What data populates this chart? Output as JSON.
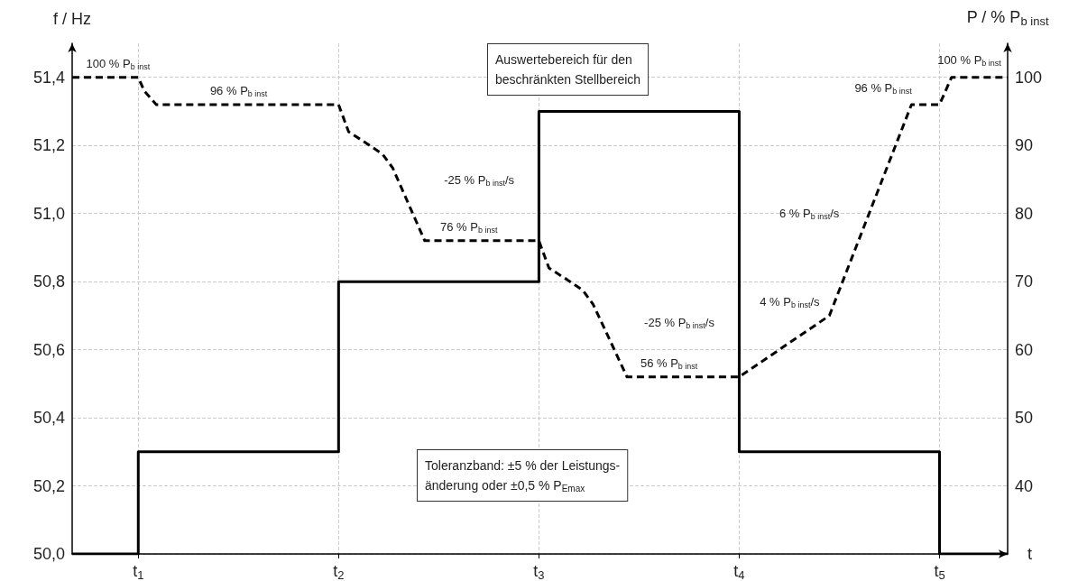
{
  "chart_data": {
    "type": "line",
    "xlabel": "t",
    "ylabel": "f / Hz",
    "y2label": "P / % P$_{b inst}$",
    "xlim": [
      0.67,
      5.34
    ],
    "xticks": [
      {
        "value": 1,
        "label": "t$_{1}$"
      },
      {
        "value": 2,
        "label": "t$_{2}$"
      },
      {
        "value": 3,
        "label": "t$_{3}$"
      },
      {
        "value": 4,
        "label": "t$_{4}$"
      },
      {
        "value": 5,
        "label": "t$_{5}$"
      }
    ],
    "ylim": [
      50,
      51.5
    ],
    "yticks": [
      {
        "value": 50,
        "label": "50,0"
      },
      {
        "value": 50.2,
        "label": "50,2"
      },
      {
        "value": 50.4,
        "label": "50,4"
      },
      {
        "value": 50.6,
        "label": "50,6"
      },
      {
        "value": 50.8,
        "label": "50,8"
      },
      {
        "value": 51,
        "label": "51,0"
      },
      {
        "value": 51.2,
        "label": "51,2"
      },
      {
        "value": 51.4,
        "label": "51,4"
      }
    ],
    "y2lim": [
      30,
      105
    ],
    "y2ticks": [
      40,
      50,
      60,
      70,
      80,
      90,
      100
    ],
    "grid": true,
    "marker": "none",
    "series": [
      {
        "type": "step",
        "color": "#000000",
        "line_style": "solid",
        "x": [
          0.67,
          1,
          2,
          3,
          4,
          5,
          5.34
        ],
        "values": [
          50,
          50.3,
          50.8,
          51.3,
          50.3,
          50,
          50
        ]
      },
      {
        "axis": "y2",
        "color": "#000000",
        "line_style": "dashed",
        "x": [
          0.67,
          1,
          1.03,
          1.09,
          2,
          2.05,
          2.14,
          2.22,
          2.27,
          2.43,
          3,
          3.05,
          3.14,
          3.22,
          3.27,
          3.44,
          4,
          4.45,
          4.86,
          5,
          5.06,
          5.34
        ],
        "values": [
          100,
          100,
          98,
          96,
          96,
          92,
          90.3,
          88.7,
          86.7,
          76,
          76,
          72,
          70.3,
          68.7,
          66.7,
          56,
          56,
          65,
          96,
          96,
          100,
          100
        ]
      }
    ],
    "annotations": [
      "100 % P$_{b inst}$",
      "96 % P$_{b inst}$",
      "-25 % P$_{b inst}$/s",
      "76 % P$_{b inst}$",
      "-25 % P$_{b inst}$/s",
      "56 % P$_{b inst}$",
      "4 % P$_{b inst}$/s",
      "6 % P$_{b inst}$/s",
      "96 % P$_{b inst}$",
      "100 % P$_{b inst}$",
      "Auswertebereich für den\nbeschränkten Stellbereich",
      "Toleranzband: ±5 % der Leistungs-\nänderung oder ±0,5 % P$_{Emax}$"
    ]
  }
}
